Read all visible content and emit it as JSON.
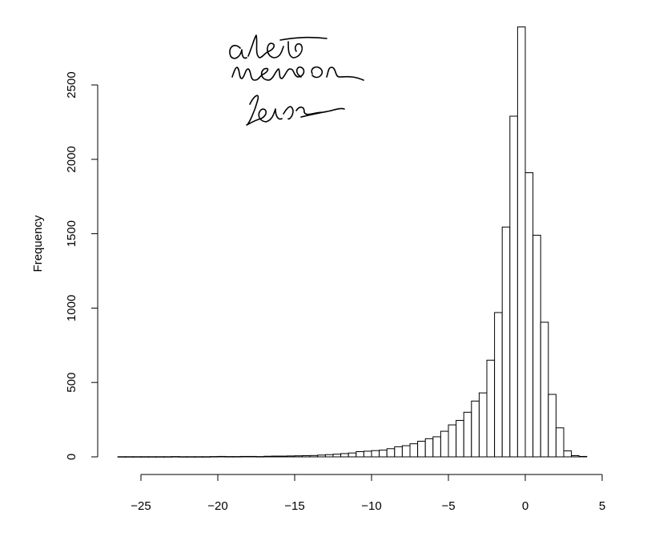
{
  "chart_data": {
    "type": "bar",
    "title": "",
    "xlabel": "",
    "ylabel": "Frequency",
    "xlim": [
      -26.5,
      4.5
    ],
    "ylim": [
      0,
      2900
    ],
    "x_ticks": [
      -25,
      -20,
      -15,
      -10,
      -5,
      0,
      5
    ],
    "x_tick_labels": [
      "−25",
      "−20",
      "−15",
      "−10",
      "−5",
      "0",
      "5"
    ],
    "y_ticks": [
      0,
      500,
      1000,
      1500,
      2000,
      2500
    ],
    "y_tick_labels": [
      "0",
      "500",
      "1000",
      "1500",
      "2000",
      "2500"
    ],
    "grid": false,
    "legend": "none",
    "bin_width": 0.5,
    "bins_start": [
      -26.5,
      -26.0,
      -25.5,
      -25.0,
      -24.5,
      -24.0,
      -23.5,
      -23.0,
      -22.5,
      -22.0,
      -21.5,
      -21.0,
      -20.5,
      -20.0,
      -19.5,
      -19.0,
      -18.5,
      -18.0,
      -17.5,
      -17.0,
      -16.5,
      -16.0,
      -15.5,
      -15.0,
      -14.5,
      -14.0,
      -13.5,
      -13.0,
      -12.5,
      -12.0,
      -11.5,
      -11.0,
      -10.5,
      -10.0,
      -9.5,
      -9.0,
      -8.5,
      -8.0,
      -7.5,
      -7.0,
      -6.5,
      -6.0,
      -5.5,
      -5.0,
      -4.5,
      -4.0,
      -3.5,
      -3.0,
      -2.5,
      -2.0,
      -1.5,
      -1.0,
      -0.5,
      0.0,
      0.5,
      1.0,
      1.5,
      2.0,
      2.5,
      3.0,
      3.5
    ],
    "values": [
      1,
      1,
      1,
      1,
      1,
      1,
      1,
      2,
      1,
      1,
      1,
      1,
      2,
      3,
      2,
      2,
      3,
      3,
      2,
      4,
      5,
      5,
      6,
      7,
      8,
      9,
      12,
      15,
      18,
      22,
      26,
      35,
      38,
      42,
      45,
      55,
      68,
      75,
      88,
      105,
      122,
      135,
      172,
      215,
      245,
      300,
      375,
      430,
      650,
      970,
      1545,
      2290,
      2890,
      1910,
      1490,
      905,
      420,
      195,
      40,
      8,
      3
    ]
  },
  "annotation": {
    "handwritten_note": "alert more on left"
  }
}
